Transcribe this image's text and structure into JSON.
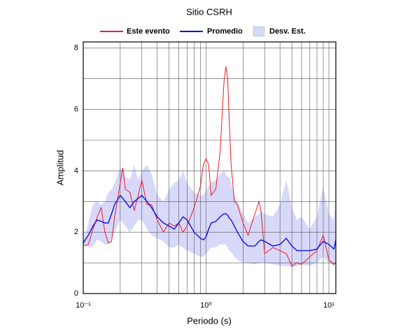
{
  "chart_data": {
    "type": "line",
    "title": "Sitio CSRH",
    "xlabel": "Periodo (s)",
    "ylabel": "Amplitud",
    "xscale": "log",
    "legend": "top",
    "grid": true,
    "xlim": [
      0.1,
      11.4
    ],
    "ylim": [
      0,
      8.2
    ],
    "xticks": [
      {
        "value": 0.1,
        "label": "10⁻¹"
      },
      {
        "value": 1,
        "label": "10⁰"
      },
      {
        "value": 10,
        "label": "10¹"
      }
    ],
    "minor_xticks": [
      0.2,
      0.3,
      0.4,
      0.5,
      0.6,
      0.7,
      0.8,
      0.9,
      2,
      3,
      4,
      5,
      6,
      7,
      8,
      9
    ],
    "yticks": [
      0,
      2,
      4,
      6,
      8
    ],
    "minor_yticks": [
      1,
      3,
      5,
      7
    ],
    "x": [
      0.1,
      0.11,
      0.12,
      0.13,
      0.14,
      0.15,
      0.16,
      0.17,
      0.18,
      0.2,
      0.21,
      0.22,
      0.24,
      0.26,
      0.28,
      0.3,
      0.33,
      0.36,
      0.4,
      0.45,
      0.5,
      0.55,
      0.6,
      0.65,
      0.7,
      0.8,
      0.9,
      0.95,
      1.0,
      1.05,
      1.1,
      1.2,
      1.3,
      1.4,
      1.45,
      1.5,
      1.55,
      1.6,
      1.7,
      1.8,
      2.0,
      2.2,
      2.5,
      2.7,
      2.8,
      3.0,
      3.5,
      4.0,
      4.5,
      5,
      5.5,
      6,
      7,
      8,
      9,
      10,
      11,
      11.4
    ],
    "band": {
      "name": "Desv. Est.",
      "color": "#d8d8fa",
      "upper": [
        1.7,
        2.3,
        2.9,
        3.0,
        2.9,
        3.0,
        3.3,
        3.4,
        3.6,
        4.1,
        4.0,
        3.8,
        3.7,
        4.2,
        3.7,
        4.0,
        4.2,
        3.9,
        3.2,
        3.0,
        3.4,
        3.6,
        3.7,
        4.0,
        3.6,
        3.3,
        3.2,
        3.2,
        3.4,
        3.5,
        3.6,
        3.7,
        3.9,
        4.0,
        3.9,
        3.8,
        3.8,
        3.6,
        3.2,
        3.0,
        2.6,
        2.3,
        2.5,
        2.6,
        2.7,
        2.6,
        2.5,
        2.9,
        3.7,
        2.8,
        2.4,
        2.5,
        2.1,
        2.5,
        3.5,
        2.6,
        2.4,
        3.3
      ],
      "lower": [
        1.6,
        1.5,
        1.55,
        1.75,
        1.7,
        1.6,
        1.6,
        1.8,
        2.0,
        2.4,
        2.3,
        2.2,
        2.0,
        2.2,
        2.4,
        2.4,
        2.1,
        1.9,
        1.8,
        1.7,
        1.5,
        1.5,
        1.6,
        1.5,
        1.4,
        1.3,
        1.2,
        1.2,
        1.3,
        1.4,
        1.5,
        1.5,
        1.6,
        1.6,
        1.6,
        1.5,
        1.4,
        1.35,
        1.2,
        1.1,
        1.0,
        1.0,
        0.95,
        1.0,
        1.0,
        1.0,
        0.95,
        0.9,
        0.9,
        0.85,
        0.9,
        0.95,
        0.9,
        1.0,
        1.2,
        1.0,
        0.9,
        1.0
      ]
    },
    "series": [
      {
        "name": "Este evento",
        "color": "#ee1c24",
        "values": [
          1.55,
          1.6,
          2.1,
          2.5,
          2.8,
          2.0,
          1.65,
          1.7,
          2.5,
          3.6,
          4.1,
          3.4,
          3.3,
          2.7,
          3.2,
          3.7,
          2.9,
          2.9,
          2.4,
          2.0,
          2.3,
          2.2,
          2.3,
          2.0,
          2.2,
          2.8,
          3.5,
          4.2,
          4.4,
          4.2,
          3.2,
          3.4,
          4.6,
          6.9,
          7.4,
          7.0,
          5.5,
          4.2,
          3.0,
          2.9,
          2.3,
          1.9,
          2.6,
          3.0,
          2.7,
          1.3,
          1.5,
          1.4,
          1.3,
          0.9,
          1.0,
          0.95,
          1.2,
          1.4,
          1.9,
          1.1,
          0.95,
          1.0
        ]
      },
      {
        "name": "Promedio",
        "color": "#1010e0",
        "values": [
          1.65,
          1.9,
          2.2,
          2.4,
          2.35,
          2.3,
          2.3,
          2.6,
          2.9,
          3.2,
          3.1,
          3.0,
          2.8,
          3.0,
          3.1,
          3.2,
          3.0,
          2.8,
          2.5,
          2.3,
          2.2,
          2.1,
          2.3,
          2.5,
          2.4,
          2.0,
          1.8,
          1.75,
          1.85,
          2.1,
          2.3,
          2.35,
          2.5,
          2.6,
          2.6,
          2.55,
          2.45,
          2.4,
          2.2,
          2.0,
          1.7,
          1.55,
          1.55,
          1.7,
          1.75,
          1.7,
          1.55,
          1.6,
          1.8,
          1.55,
          1.4,
          1.4,
          1.4,
          1.45,
          1.7,
          1.6,
          1.45,
          1.75
        ]
      }
    ]
  }
}
